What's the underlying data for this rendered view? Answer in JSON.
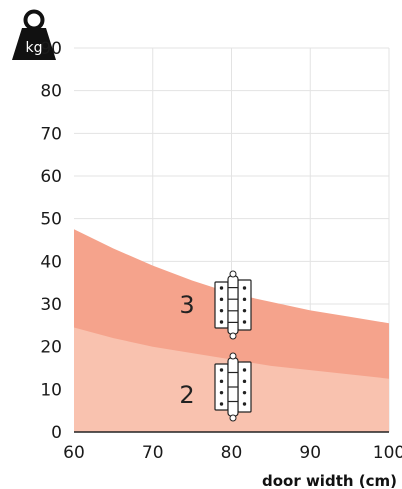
{
  "chart_data": {
    "type": "area",
    "title": "",
    "xlabel": "door width (cm)",
    "ylabel": "",
    "unit_icon": {
      "name": "weight-kg-icon",
      "label": "kg"
    },
    "xlim": [
      60,
      100
    ],
    "ylim": [
      0,
      90
    ],
    "x_ticks": [
      60,
      70,
      80,
      90,
      100
    ],
    "y_ticks": [
      0,
      10,
      20,
      30,
      40,
      50,
      60,
      70,
      80,
      90
    ],
    "grid": true,
    "x": [
      60,
      65,
      70,
      75,
      80,
      85,
      90,
      95,
      100
    ],
    "series": [
      {
        "label": "3",
        "icon": "three-knuckle-hinge-icon",
        "color": "#f5a38c",
        "values": [
          47.5,
          43.0,
          39.0,
          35.5,
          32.5,
          30.5,
          28.5,
          27.0,
          25.5
        ]
      },
      {
        "label": "2",
        "icon": "two-knuckle-hinge-icon",
        "color": "#f9c2af",
        "values": [
          24.5,
          22.0,
          20.0,
          18.5,
          17.0,
          15.5,
          14.5,
          13.5,
          12.5
        ]
      }
    ]
  }
}
